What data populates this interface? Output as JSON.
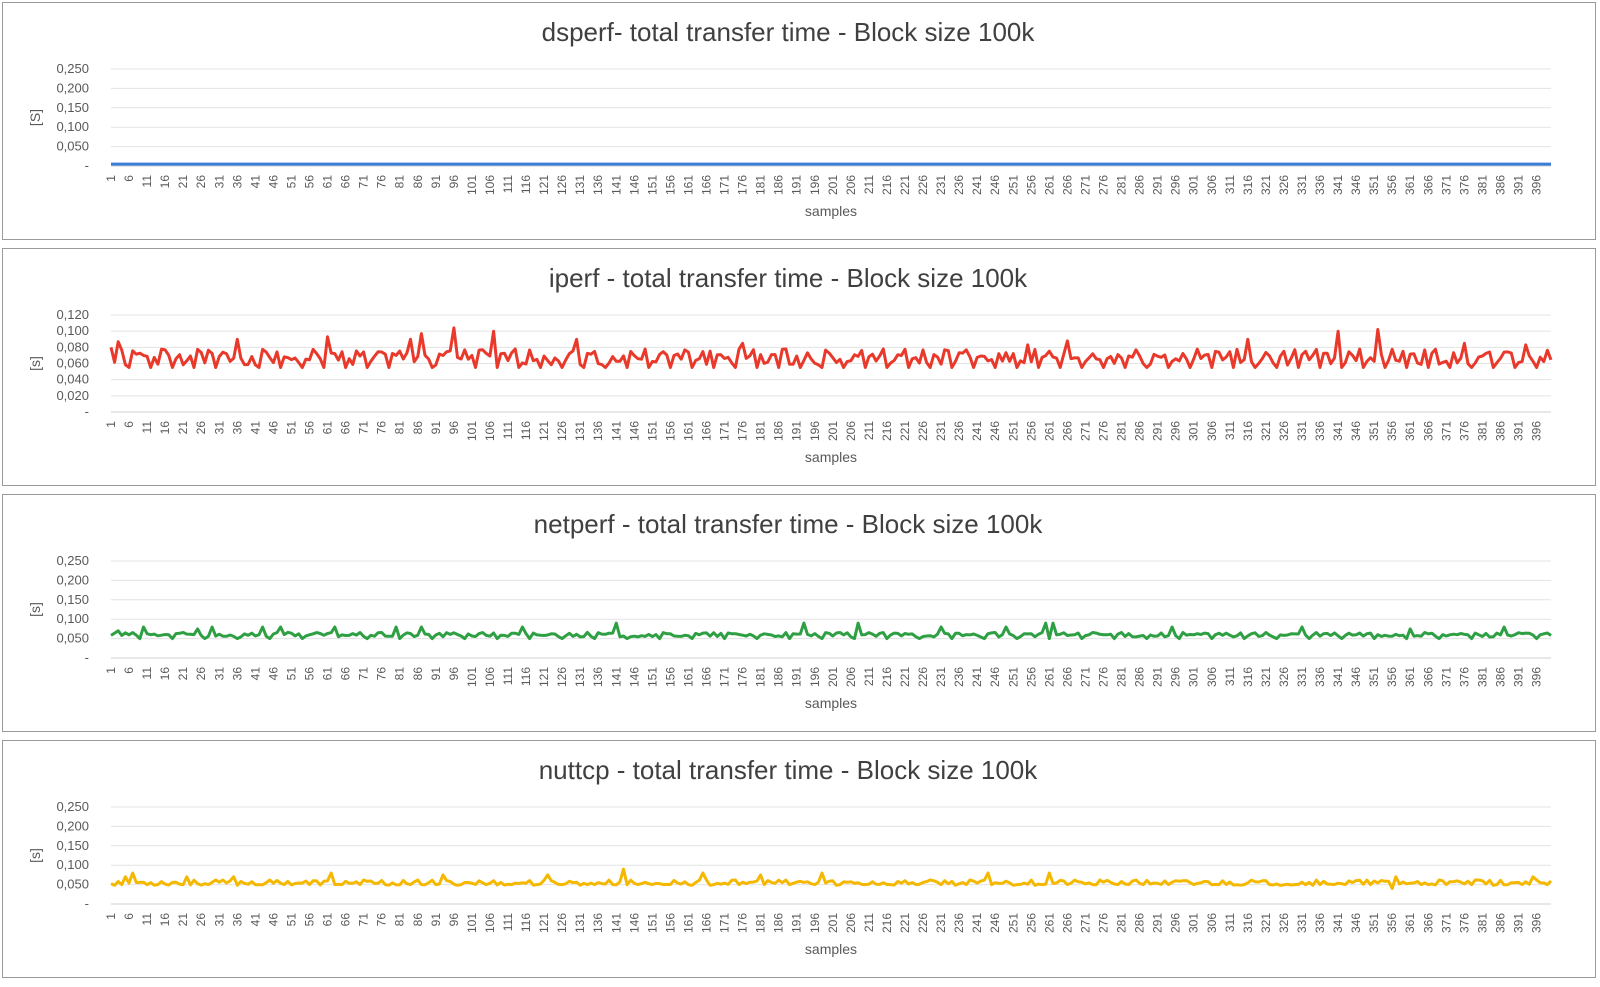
{
  "chart_data": [
    {
      "type": "line",
      "title": "dsperf- total transfer time - Block size 100k",
      "xlabel": "samples",
      "ylabel": "[S]",
      "x_range": [
        1,
        400
      ],
      "ylim": [
        0,
        0.25
      ],
      "y_ticks": [
        "-",
        "0,050",
        "0,100",
        "0,150",
        "0,200",
        "0,250"
      ],
      "y_tick_values": [
        0,
        0.05,
        0.1,
        0.15,
        0.2,
        0.25
      ],
      "grid": true,
      "legend": "none",
      "color": "#3b7dd8",
      "pattern": {
        "base": 0.005,
        "amp": 0,
        "spikes": []
      }
    },
    {
      "type": "line",
      "title": "iperf - total transfer time - Block size 100k",
      "xlabel": "samples",
      "ylabel": "[s]",
      "x_range": [
        1,
        400
      ],
      "ylim": [
        0,
        0.12
      ],
      "y_ticks": [
        "-",
        "0,020",
        "0,040",
        "0,060",
        "0,080",
        "0,100",
        "0,120"
      ],
      "y_tick_values": [
        0,
        0.02,
        0.04,
        0.06,
        0.08,
        0.1,
        0.12
      ],
      "grid": true,
      "legend": "none",
      "color": "#e8392b",
      "pattern": {
        "base": 0.068,
        "amp": 0.01,
        "lowevery": 6,
        "low": 0.055,
        "spikes": [
          [
            1,
            0.08
          ],
          [
            3,
            0.087
          ],
          [
            36,
            0.09
          ],
          [
            61,
            0.093
          ],
          [
            84,
            0.09
          ],
          [
            87,
            0.097
          ],
          [
            96,
            0.104
          ],
          [
            107,
            0.1
          ],
          [
            130,
            0.09
          ],
          [
            176,
            0.085
          ],
          [
            255,
            0.083
          ],
          [
            266,
            0.088
          ],
          [
            316,
            0.09
          ],
          [
            341,
            0.1
          ],
          [
            352,
            0.102
          ],
          [
            376,
            0.085
          ],
          [
            393,
            0.083
          ]
        ]
      }
    },
    {
      "type": "line",
      "title": "netperf - total transfer time - Block size 100k",
      "xlabel": "samples",
      "ylabel": "[s]",
      "x_range": [
        1,
        400
      ],
      "ylim": [
        0,
        0.25
      ],
      "y_ticks": [
        "-",
        "0,050",
        "0,100",
        "0,150",
        "0,200",
        "0,250"
      ],
      "y_tick_values": [
        0,
        0.05,
        0.1,
        0.15,
        0.2,
        0.25
      ],
      "grid": true,
      "legend": "none",
      "color": "#2ea043",
      "pattern": {
        "base": 0.06,
        "amp": 0.006,
        "lowevery": 9,
        "low": 0.05,
        "spikes": [
          [
            3,
            0.07
          ],
          [
            10,
            0.08
          ],
          [
            25,
            0.075
          ],
          [
            29,
            0.08
          ],
          [
            43,
            0.08
          ],
          [
            48,
            0.08
          ],
          [
            63,
            0.08
          ],
          [
            80,
            0.08
          ],
          [
            87,
            0.08
          ],
          [
            115,
            0.08
          ],
          [
            141,
            0.09
          ],
          [
            193,
            0.09
          ],
          [
            208,
            0.09
          ],
          [
            231,
            0.08
          ],
          [
            249,
            0.08
          ],
          [
            260,
            0.09
          ],
          [
            262,
            0.09
          ],
          [
            295,
            0.08
          ],
          [
            331,
            0.08
          ],
          [
            361,
            0.075
          ],
          [
            387,
            0.08
          ]
        ]
      }
    },
    {
      "type": "line",
      "title": "nuttcp - total transfer time - Block size 100k",
      "xlabel": "samples",
      "ylabel": "[s]",
      "x_range": [
        1,
        400
      ],
      "ylim": [
        0,
        0.25
      ],
      "y_ticks": [
        "-",
        "0,050",
        "0,100",
        "0,150",
        "0,200",
        "0,250"
      ],
      "y_tick_values": [
        0,
        0.05,
        0.1,
        0.15,
        0.2,
        0.25
      ],
      "grid": true,
      "legend": "none",
      "color": "#f5b800",
      "pattern": {
        "base": 0.055,
        "amp": 0.007,
        "lowevery": 7,
        "low": 0.05,
        "spikes": [
          [
            5,
            0.07
          ],
          [
            7,
            0.08
          ],
          [
            22,
            0.07
          ],
          [
            35,
            0.07
          ],
          [
            62,
            0.08
          ],
          [
            93,
            0.075
          ],
          [
            122,
            0.075
          ],
          [
            143,
            0.09
          ],
          [
            165,
            0.08
          ],
          [
            181,
            0.075
          ],
          [
            198,
            0.08
          ],
          [
            244,
            0.08
          ],
          [
            261,
            0.08
          ],
          [
            356,
            0.04
          ],
          [
            357,
            0.07
          ],
          [
            395,
            0.07
          ]
        ]
      }
    }
  ]
}
